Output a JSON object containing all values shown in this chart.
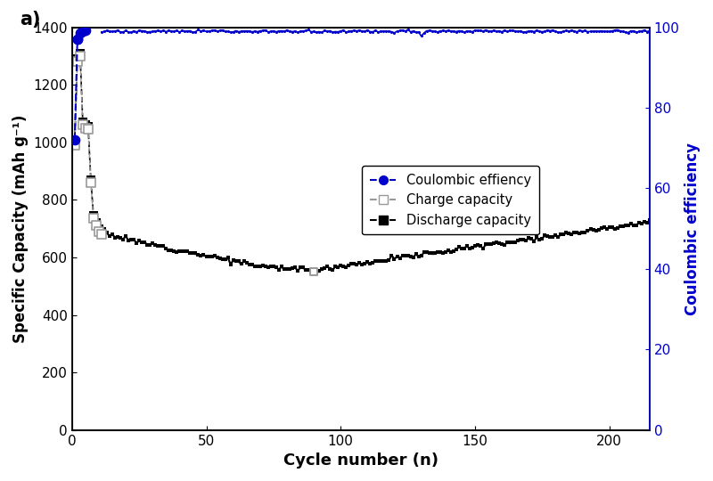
{
  "title": "a)",
  "xlabel": "Cycle number (n)",
  "ylabel_left": "Specific Capacity (mAh g⁻¹)",
  "ylabel_right": "Coulombic efficiency",
  "xlim": [
    0,
    215
  ],
  "ylim_left": [
    0,
    1400
  ],
  "ylim_right": [
    0,
    100
  ],
  "yticks_left": [
    0,
    200,
    400,
    600,
    800,
    1000,
    1200,
    1400
  ],
  "yticks_right": [
    0,
    20,
    40,
    60,
    80,
    100
  ],
  "xticks": [
    0,
    50,
    100,
    150,
    200
  ],
  "colors": {
    "coulombic": "#0000cc",
    "charge": "#999999",
    "discharge": "#000000"
  },
  "legend_labels": [
    "Coulombic effiency",
    "Charge capacity",
    "Discharge capacity"
  ],
  "background_color": "#ffffff",
  "coulombic_early_x": [
    1,
    2,
    3,
    4,
    5
  ],
  "coulombic_early_y": [
    72,
    97,
    98.5,
    99.0,
    99.2
  ],
  "discharge_early_x": [
    1,
    2,
    3,
    4,
    5,
    6,
    7,
    8,
    9,
    10,
    11
  ],
  "discharge_early_y": [
    1000,
    1290,
    1310,
    1070,
    1060,
    1055,
    870,
    745,
    720,
    700,
    690
  ],
  "charge_early_x": [
    1,
    2,
    3,
    4,
    5,
    6,
    7,
    8,
    9,
    10,
    11
  ],
  "charge_early_y": [
    990,
    1280,
    1300,
    1060,
    1050,
    1045,
    860,
    735,
    710,
    690,
    680
  ]
}
